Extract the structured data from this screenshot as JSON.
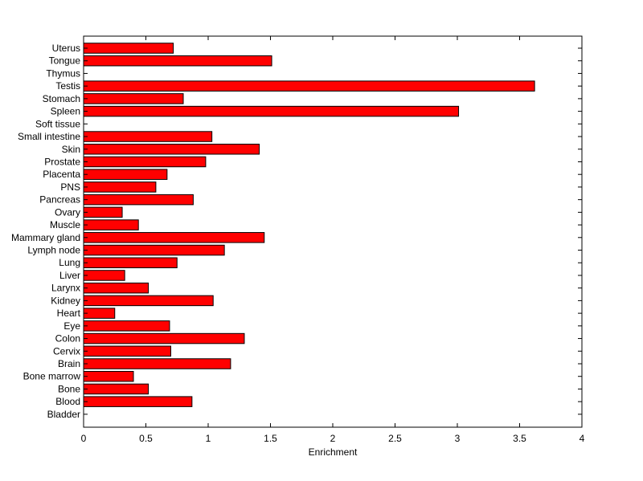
{
  "chart_data": {
    "type": "bar",
    "orientation": "horizontal",
    "title": "",
    "xlabel": "Enrichment",
    "ylabel": "",
    "xlim": [
      0,
      4
    ],
    "xticks": [
      0,
      0.5,
      1,
      1.5,
      2,
      2.5,
      3,
      3.5,
      4
    ],
    "xtick_labels": [
      "0",
      "0.5",
      "1",
      "1.5",
      "2",
      "2.5",
      "3",
      "3.5",
      "4"
    ],
    "grid": false,
    "categories": [
      "Uterus",
      "Tongue",
      "Thymus",
      "Testis",
      "Stomach",
      "Spleen",
      "Soft tissue",
      "Small intestine",
      "Skin",
      "Prostate",
      "Placenta",
      "PNS",
      "Pancreas",
      "Ovary",
      "Muscle",
      "Mammary gland",
      "Lymph node",
      "Lung",
      "Liver",
      "Larynx",
      "Kidney",
      "Heart",
      "Eye",
      "Colon",
      "Cervix",
      "Brain",
      "Bone marrow",
      "Bone",
      "Blood",
      "Bladder"
    ],
    "values": [
      0.72,
      1.51,
      0,
      3.62,
      0.8,
      3.01,
      0,
      1.03,
      1.41,
      0.98,
      0.67,
      0.58,
      0.88,
      0.31,
      0.44,
      1.45,
      1.13,
      0.75,
      0.33,
      0.52,
      1.04,
      0.25,
      0.69,
      1.29,
      0.7,
      1.18,
      0.4,
      0.52,
      0.87,
      0
    ],
    "bar_color": "#ff0000",
    "bar_edge_color": "#000000"
  }
}
